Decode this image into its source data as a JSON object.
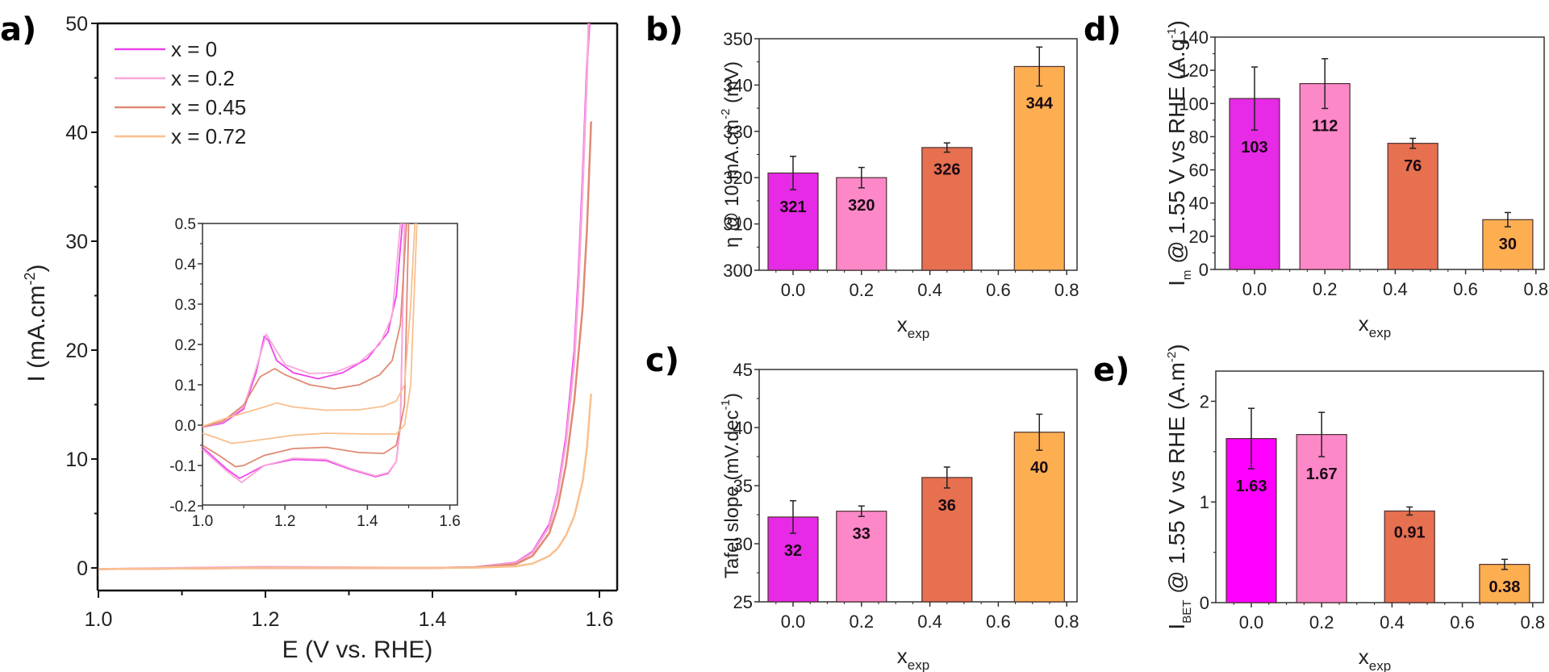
{
  "figure": {
    "panel_labels": [
      "a)",
      "b)",
      "c)",
      "d)",
      "e)"
    ]
  },
  "colors": {
    "x0": "#e62ae6",
    "x02": "#fc88c8",
    "x045": "#e6704f",
    "x072": "#fdae50",
    "x0_bar_e": "#ff00ff",
    "line_x0": "#ee44ee",
    "line_x02": "#f8a8d8",
    "line_x045": "#e08a74",
    "line_x072": "#f9bf8e"
  },
  "chart_data": [
    {
      "id": "a",
      "type": "line",
      "title": "",
      "xlabel": "E (V vs. RHE)",
      "ylabel": "I (mA.cm",
      "ylabel_sup": "-2",
      "ylabel_end": ")",
      "xlim": [
        1.0,
        1.62
      ],
      "ylim": [
        -2.0,
        50
      ],
      "xticks": [
        1.0,
        1.2,
        1.4,
        1.6
      ],
      "xtick_labels": [
        "1.0",
        "1.2",
        "1.4",
        "1.6"
      ],
      "yticks": [
        0,
        10,
        20,
        30,
        40,
        50
      ],
      "ytick_labels": [
        "0",
        "10",
        "20",
        "30",
        "40",
        "50"
      ],
      "legend_position": "top-left",
      "series": [
        {
          "name": "x = 0",
          "color_key": "line_x0",
          "points": [
            [
              1.0,
              -0.1
            ],
            [
              1.2,
              0.0
            ],
            [
              1.4,
              0.0
            ],
            [
              1.45,
              0.05
            ],
            [
              1.5,
              0.5
            ],
            [
              1.52,
              1.5
            ],
            [
              1.54,
              4
            ],
            [
              1.55,
              7
            ],
            [
              1.56,
              12
            ],
            [
              1.57,
              20
            ],
            [
              1.575,
              27
            ],
            [
              1.58,
              36
            ],
            [
              1.585,
              46
            ],
            [
              1.588,
              50
            ]
          ]
        },
        {
          "name": "x = 0.2",
          "color_key": "line_x02",
          "points": [
            [
              1.0,
              -0.1
            ],
            [
              1.2,
              0.1
            ],
            [
              1.4,
              0.0
            ],
            [
              1.45,
              0.05
            ],
            [
              1.5,
              0.45
            ],
            [
              1.52,
              1.4
            ],
            [
              1.54,
              3.8
            ],
            [
              1.55,
              6.8
            ],
            [
              1.56,
              11.5
            ],
            [
              1.57,
              19
            ],
            [
              1.575,
              26
            ],
            [
              1.58,
              35
            ],
            [
              1.585,
              45
            ],
            [
              1.587,
              50
            ]
          ]
        },
        {
          "name": "x = 0.45",
          "color_key": "line_x045",
          "points": [
            [
              1.0,
              -0.1
            ],
            [
              1.2,
              0.0
            ],
            [
              1.4,
              0.0
            ],
            [
              1.45,
              0.05
            ],
            [
              1.5,
              0.35
            ],
            [
              1.52,
              1.1
            ],
            [
              1.54,
              3.2
            ],
            [
              1.55,
              5.6
            ],
            [
              1.56,
              9.5
            ],
            [
              1.57,
              15.5
            ],
            [
              1.58,
              24
            ],
            [
              1.585,
              31
            ],
            [
              1.59,
              41
            ]
          ]
        },
        {
          "name": "x = 0.72",
          "color_key": "line_x072",
          "points": [
            [
              1.0,
              -0.1
            ],
            [
              1.2,
              0.0
            ],
            [
              1.4,
              0.0
            ],
            [
              1.45,
              0.02
            ],
            [
              1.5,
              0.15
            ],
            [
              1.52,
              0.4
            ],
            [
              1.54,
              1.1
            ],
            [
              1.55,
              1.8
            ],
            [
              1.56,
              3.0
            ],
            [
              1.57,
              4.8
            ],
            [
              1.58,
              8
            ],
            [
              1.585,
              11
            ],
            [
              1.59,
              16
            ]
          ]
        }
      ],
      "inset": {
        "xlim": [
          1.0,
          1.62
        ],
        "ylim": [
          -0.2,
          0.5
        ],
        "xticks": [
          1.0,
          1.2,
          1.4,
          1.6
        ],
        "xtick_labels": [
          "1.0",
          "1.2",
          "1.4",
          "1.6"
        ],
        "yticks": [
          -0.2,
          -0.1,
          0.0,
          0.1,
          0.2,
          0.3,
          0.4,
          0.5
        ],
        "ytick_labels": [
          "-0.2",
          "-0.1",
          "0.0",
          "0.1",
          "0.2",
          "0.3",
          "0.4",
          "0.5"
        ],
        "series": [
          {
            "name": "x = 0",
            "color_key": "line_x0",
            "forward": [
              [
                1.0,
                -0.005
              ],
              [
                1.05,
                0.005
              ],
              [
                1.1,
                0.04
              ],
              [
                1.13,
                0.13
              ],
              [
                1.15,
                0.22
              ],
              [
                1.16,
                0.21
              ],
              [
                1.18,
                0.16
              ],
              [
                1.22,
                0.13
              ],
              [
                1.28,
                0.115
              ],
              [
                1.34,
                0.13
              ],
              [
                1.4,
                0.165
              ],
              [
                1.45,
                0.23
              ],
              [
                1.47,
                0.32
              ],
              [
                1.485,
                0.5
              ]
            ],
            "reverse": [
              [
                1.49,
                0.5
              ],
              [
                1.48,
                0.0
              ],
              [
                1.47,
                -0.09
              ],
              [
                1.45,
                -0.12
              ],
              [
                1.42,
                -0.128
              ],
              [
                1.36,
                -0.11
              ],
              [
                1.3,
                -0.088
              ],
              [
                1.22,
                -0.085
              ],
              [
                1.15,
                -0.1
              ],
              [
                1.09,
                -0.132
              ],
              [
                1.06,
                -0.11
              ],
              [
                1.0,
                -0.055
              ]
            ]
          },
          {
            "name": "x = 0.2",
            "color_key": "line_x02",
            "forward": [
              [
                1.0,
                -0.005
              ],
              [
                1.05,
                0.008
              ],
              [
                1.1,
                0.045
              ],
              [
                1.13,
                0.14
              ],
              [
                1.155,
                0.225
              ],
              [
                1.17,
                0.2
              ],
              [
                1.2,
                0.15
              ],
              [
                1.26,
                0.128
              ],
              [
                1.32,
                0.13
              ],
              [
                1.38,
                0.155
              ],
              [
                1.43,
                0.2
              ],
              [
                1.46,
                0.27
              ],
              [
                1.48,
                0.5
              ]
            ],
            "reverse": [
              [
                1.49,
                0.5
              ],
              [
                1.48,
                0.0
              ],
              [
                1.47,
                -0.09
              ],
              [
                1.45,
                -0.118
              ],
              [
                1.42,
                -0.126
              ],
              [
                1.36,
                -0.108
              ],
              [
                1.3,
                -0.085
              ],
              [
                1.22,
                -0.082
              ],
              [
                1.15,
                -0.1
              ],
              [
                1.095,
                -0.142
              ],
              [
                1.06,
                -0.115
              ],
              [
                1.0,
                -0.06
              ]
            ]
          },
          {
            "name": "x = 0.45",
            "color_key": "line_x045",
            "forward": [
              [
                1.0,
                -0.005
              ],
              [
                1.05,
                0.01
              ],
              [
                1.1,
                0.05
              ],
              [
                1.14,
                0.12
              ],
              [
                1.175,
                0.14
              ],
              [
                1.2,
                0.125
              ],
              [
                1.26,
                0.1
              ],
              [
                1.32,
                0.09
              ],
              [
                1.38,
                0.1
              ],
              [
                1.43,
                0.125
              ],
              [
                1.46,
                0.16
              ],
              [
                1.48,
                0.25
              ],
              [
                1.495,
                0.5
              ]
            ],
            "reverse": [
              [
                1.5,
                0.5
              ],
              [
                1.49,
                0.05
              ],
              [
                1.47,
                -0.05
              ],
              [
                1.44,
                -0.07
              ],
              [
                1.38,
                -0.068
              ],
              [
                1.3,
                -0.055
              ],
              [
                1.22,
                -0.058
              ],
              [
                1.15,
                -0.075
              ],
              [
                1.1,
                -0.1
              ],
              [
                1.08,
                -0.103
              ],
              [
                1.04,
                -0.075
              ],
              [
                1.0,
                -0.05
              ]
            ]
          },
          {
            "name": "x = 0.72",
            "color_key": "line_x072",
            "forward": [
              [
                1.0,
                -0.003
              ],
              [
                1.05,
                0.015
              ],
              [
                1.1,
                0.03
              ],
              [
                1.15,
                0.045
              ],
              [
                1.18,
                0.055
              ],
              [
                1.22,
                0.045
              ],
              [
                1.3,
                0.037
              ],
              [
                1.38,
                0.038
              ],
              [
                1.44,
                0.047
              ],
              [
                1.47,
                0.06
              ],
              [
                1.49,
                0.1
              ],
              [
                1.505,
                0.3
              ],
              [
                1.515,
                0.5
              ]
            ],
            "reverse": [
              [
                1.52,
                0.5
              ],
              [
                1.505,
                0.1
              ],
              [
                1.49,
                0.0
              ],
              [
                1.47,
                -0.022
              ],
              [
                1.4,
                -0.022
              ],
              [
                1.3,
                -0.02
              ],
              [
                1.22,
                -0.025
              ],
              [
                1.15,
                -0.035
              ],
              [
                1.1,
                -0.042
              ],
              [
                1.07,
                -0.045
              ],
              [
                1.03,
                -0.03
              ],
              [
                1.0,
                -0.02
              ]
            ]
          }
        ]
      }
    },
    {
      "id": "b",
      "type": "bar",
      "ylabel": "η @ 10 mA.cm",
      "ylabel_sup": "-2",
      "ylabel_end": " (mV)",
      "xlabel": "x",
      "xlabel_sub": "exp",
      "xlim": [
        -0.1,
        0.83
      ],
      "ylim": [
        300,
        350
      ],
      "xticks": [
        0.0,
        0.2,
        0.4,
        0.6,
        0.8
      ],
      "xtick_labels": [
        "0.0",
        "0.2",
        "0.4",
        "0.6",
        "0.8"
      ],
      "yticks": [
        300,
        310,
        320,
        330,
        340,
        350
      ],
      "ytick_labels": [
        "300",
        "310",
        "320",
        "330",
        "340",
        "350"
      ],
      "x": [
        0.0,
        0.2,
        0.45,
        0.72
      ],
      "values": [
        321,
        320,
        326.5,
        344
      ],
      "errors": [
        3.6,
        2.2,
        1.0,
        4.2
      ],
      "labels": [
        "321",
        "320",
        "326",
        "344"
      ],
      "label_side": [
        "below",
        "below",
        "below",
        "below"
      ]
    },
    {
      "id": "c",
      "type": "bar",
      "ylabel": "Tafel slope (mV.dec",
      "ylabel_sup": "-1",
      "ylabel_end": ")",
      "xlabel": "x",
      "xlabel_sub": "exp",
      "xlim": [
        -0.1,
        0.83
      ],
      "ylim": [
        25,
        45
      ],
      "xticks": [
        0.0,
        0.2,
        0.4,
        0.6,
        0.8
      ],
      "xtick_labels": [
        "0.0",
        "0.2",
        "0.4",
        "0.6",
        "0.8"
      ],
      "yticks": [
        25,
        30,
        35,
        40,
        45
      ],
      "ytick_labels": [
        "25",
        "30",
        "35",
        "40",
        "45"
      ],
      "x": [
        0.0,
        0.2,
        0.45,
        0.72
      ],
      "values": [
        32.3,
        32.8,
        35.7,
        39.6
      ],
      "errors": [
        1.4,
        0.45,
        0.9,
        1.55
      ],
      "labels": [
        "32",
        "33",
        "36",
        "40"
      ]
    },
    {
      "id": "d",
      "type": "bar",
      "ylabel": "I",
      "ylabel_sub": "m",
      "ylabel_rest": " @ 1.55 V vs RHE (A.g",
      "ylabel_sup": "-1",
      "ylabel_end": ")",
      "xlabel": "x",
      "xlabel_sub": "exp",
      "xlim": [
        -0.11,
        0.825
      ],
      "ylim": [
        0,
        140
      ],
      "xticks": [
        0.0,
        0.2,
        0.4,
        0.6,
        0.8
      ],
      "xtick_labels": [
        "0.0",
        "0.2",
        "0.4",
        "0.6",
        "0.8"
      ],
      "yticks": [
        0,
        20,
        40,
        60,
        80,
        100,
        120,
        140
      ],
      "ytick_labels": [
        "0",
        "20",
        "40",
        "60",
        "80",
        "100",
        "120",
        "140"
      ],
      "x": [
        0.0,
        0.2,
        0.45,
        0.72
      ],
      "values": [
        103,
        112,
        76,
        30
      ],
      "errors": [
        19,
        15,
        3,
        4.3
      ],
      "labels": [
        "103",
        "112",
        "76",
        "30"
      ]
    },
    {
      "id": "e",
      "type": "bar",
      "ylabel": "I",
      "ylabel_sub": "BET",
      "ylabel_rest": " @ 1.55 V vs RHE (A.m",
      "ylabel_sup": "-2",
      "ylabel_end": ")",
      "xlabel": "x",
      "xlabel_sub": "exp",
      "xlim": [
        -0.1,
        0.83
      ],
      "ylim": [
        0,
        2.3
      ],
      "xticks": [
        0.0,
        0.2,
        0.4,
        0.6,
        0.8
      ],
      "xtick_labels": [
        "0.0",
        "0.2",
        "0.4",
        "0.6",
        "0.8"
      ],
      "yticks": [
        0,
        1,
        2
      ],
      "ytick_labels": [
        "0",
        "1",
        "2"
      ],
      "x": [
        0.0,
        0.2,
        0.45,
        0.72
      ],
      "values": [
        1.63,
        1.67,
        0.91,
        0.38
      ],
      "errors": [
        0.3,
        0.22,
        0.04,
        0.05
      ],
      "labels": [
        "1.63",
        "1.67",
        "0.91",
        "0.38"
      ]
    }
  ]
}
